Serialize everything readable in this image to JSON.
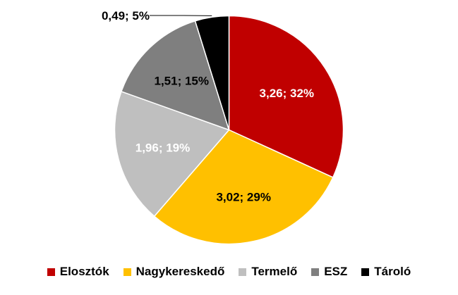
{
  "chart_data": {
    "type": "pie",
    "title": "",
    "legend_position": "bottom",
    "slices": [
      {
        "name": "Elosztók",
        "value": 3.26,
        "percent": 32,
        "label": "3,26; 32%",
        "color": "#C00000",
        "label_color": "#ffffff"
      },
      {
        "name": "Nagykereskedő",
        "value": 3.02,
        "percent": 29,
        "label": "3,02; 29%",
        "color": "#FFC000",
        "label_color": "#000000"
      },
      {
        "name": "Termelő",
        "value": 1.96,
        "percent": 19,
        "label": "1,96; 19%",
        "color": "#BFBFBF",
        "label_color": "#ffffff"
      },
      {
        "name": "ESZ",
        "value": 1.51,
        "percent": 15,
        "label": "1,51; 15%",
        "color": "#7F7F7F",
        "label_color": "#000000"
      },
      {
        "name": "Tároló",
        "value": 0.49,
        "percent": 5,
        "label": "0,49; 5%",
        "color": "#000000",
        "label_color": "#000000"
      }
    ]
  }
}
